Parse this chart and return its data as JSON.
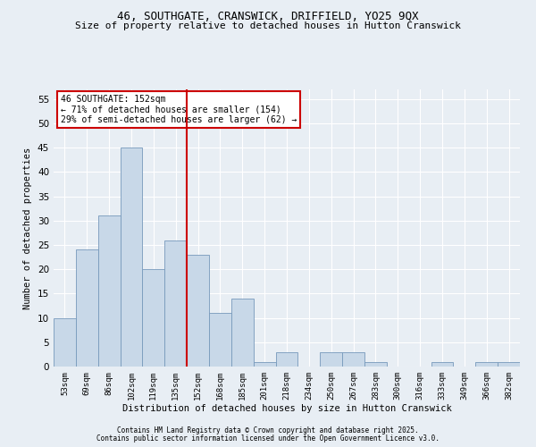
{
  "title1": "46, SOUTHGATE, CRANSWICK, DRIFFIELD, YO25 9QX",
  "title2": "Size of property relative to detached houses in Hutton Cranswick",
  "xlabel": "Distribution of detached houses by size in Hutton Cranswick",
  "ylabel": "Number of detached properties",
  "categories": [
    "53sqm",
    "69sqm",
    "86sqm",
    "102sqm",
    "119sqm",
    "135sqm",
    "152sqm",
    "168sqm",
    "185sqm",
    "201sqm",
    "218sqm",
    "234sqm",
    "250sqm",
    "267sqm",
    "283sqm",
    "300sqm",
    "316sqm",
    "333sqm",
    "349sqm",
    "366sqm",
    "382sqm"
  ],
  "values": [
    10,
    24,
    31,
    45,
    20,
    26,
    23,
    11,
    14,
    1,
    3,
    0,
    3,
    3,
    1,
    0,
    0,
    1,
    0,
    1,
    1
  ],
  "bar_color": "#c8d8e8",
  "bar_edge_color": "#7799bb",
  "vline_color": "#cc0000",
  "vline_index": 6,
  "annotation_lines": [
    "46 SOUTHGATE: 152sqm",
    "← 71% of detached houses are smaller (154)",
    "29% of semi-detached houses are larger (62) →"
  ],
  "annotation_box_color": "#ffffff",
  "annotation_box_edge_color": "#cc0000",
  "ylim": [
    0,
    57
  ],
  "yticks": [
    0,
    5,
    10,
    15,
    20,
    25,
    30,
    35,
    40,
    45,
    50,
    55
  ],
  "background_color": "#e8eef4",
  "footer1": "Contains HM Land Registry data © Crown copyright and database right 2025.",
  "footer2": "Contains public sector information licensed under the Open Government Licence v3.0."
}
